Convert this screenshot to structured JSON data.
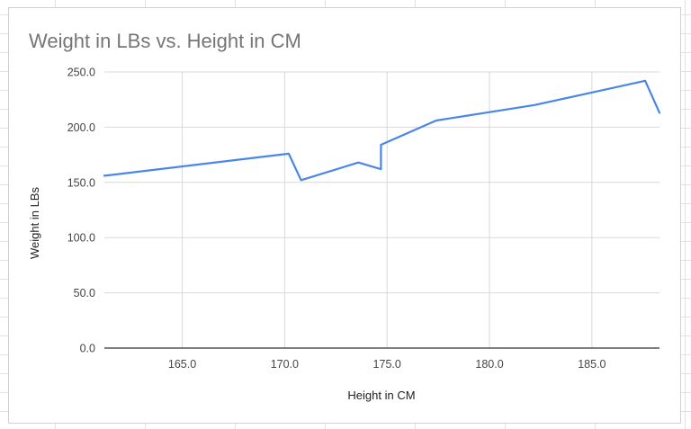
{
  "chart_data": {
    "type": "line",
    "title": "Weight in LBs vs. Height in CM",
    "xlabel": "Height in CM",
    "ylabel": "Weight in LBs",
    "xlim": [
      161.2,
      188.3
    ],
    "ylim": [
      0,
      250
    ],
    "xticks": [
      "165.0",
      "170.0",
      "175.0",
      "180.0",
      "185.0"
    ],
    "xtick_values": [
      165,
      170,
      175,
      180,
      185
    ],
    "yticks": [
      "0.0",
      "50.0",
      "100.0",
      "150.0",
      "200.0",
      "250.0"
    ],
    "ytick_values": [
      0,
      50,
      100,
      150,
      200,
      250
    ],
    "grid": true,
    "legend": "none",
    "series_color": "#4a86e8",
    "x": [
      161.2,
      170.2,
      170.8,
      173.6,
      174.7,
      174.7,
      177.4,
      182.2,
      187.6,
      188.3
    ],
    "y": [
      156,
      176,
      152,
      168,
      162,
      184,
      206,
      220,
      242,
      213
    ]
  }
}
